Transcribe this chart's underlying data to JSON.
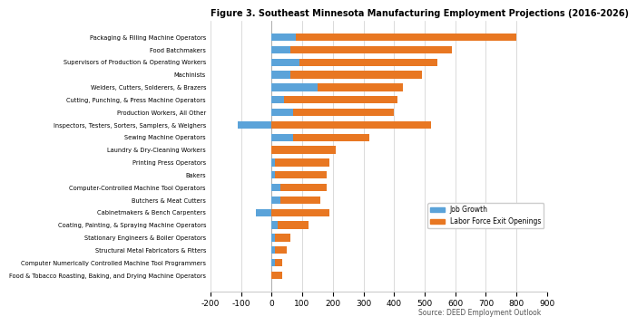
{
  "title": "Figure 3. Southeast Minnesota Manufacturing Employment Projections (2016-2026)",
  "categories": [
    "Packaging & Filling Machine Operators",
    "Food Batchmakers",
    "Supervisors of Production & Operating Workers",
    "Machinists",
    "Welders, Cutters, Solderers, & Brazers",
    "Cutting, Punching, & Press Machine Operators",
    "Production Workers, All Other",
    "Inspectors, Testers, Sorters, Samplers, & Weighers",
    "Sewing Machine Operators",
    "Laundry & Dry-Cleaning Workers",
    "Printing Press Operators",
    "Bakers",
    "Computer-Controlled Machine Tool Operators",
    "Butchers & Meat Cutters",
    "Cabinetmakers & Bench Carpenters",
    "Coating, Painting, & Spraying Machine Operators",
    "Stationary Engineers & Boiler Operators",
    "Structural Metal Fabricators & Fitters",
    "Computer Numerically Controlled Machine Tool Programmers",
    "Food & Tobacco Roasting, Baking, and Drying Machine Operators"
  ],
  "job_growth": [
    80,
    60,
    90,
    60,
    150,
    40,
    70,
    -110,
    70,
    0,
    10,
    10,
    30,
    30,
    -50,
    20,
    10,
    10,
    10,
    0
  ],
  "labor_force_exit": [
    720,
    530,
    450,
    430,
    280,
    370,
    330,
    520,
    250,
    210,
    180,
    170,
    150,
    130,
    190,
    100,
    50,
    40,
    25,
    35
  ],
  "job_growth_color": "#5BA3D9",
  "labor_force_exit_color": "#E87722",
  "xlim": [
    -200,
    900
  ],
  "xticks": [
    -200,
    -100,
    0,
    100,
    200,
    300,
    400,
    500,
    600,
    700,
    800,
    900
  ],
  "source_text": "Source: DEED Employment Outlook",
  "legend_job_growth": "Job Growth",
  "legend_labor_force": "Labor Force Exit Openings",
  "bg_color": "#FFFFFF",
  "grid_color": "#CCCCCC"
}
